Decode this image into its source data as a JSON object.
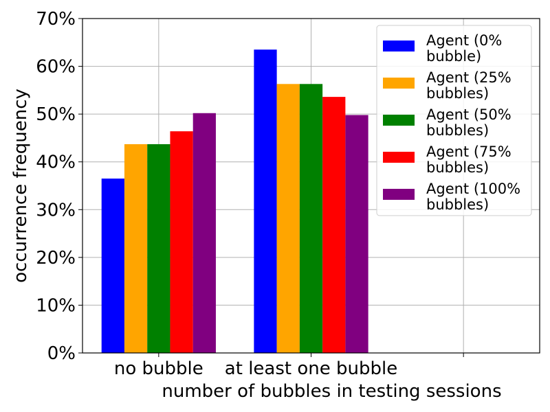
{
  "chart_data": {
    "type": "bar",
    "categories": [
      "no bubble",
      "at least one bubble"
    ],
    "series": [
      {
        "name": "Agent (0% bubble)",
        "label_lines": [
          "Agent (0%",
          "bubble)"
        ],
        "color": "#0000ff",
        "values": [
          36.5,
          63.5
        ]
      },
      {
        "name": "Agent (25% bubbles)",
        "label_lines": [
          "Agent (25%",
          "bubbles)"
        ],
        "color": "#ffa500",
        "values": [
          43.7,
          56.3
        ]
      },
      {
        "name": "Agent (50% bubbles)",
        "label_lines": [
          "Agent (50%",
          "bubbles)"
        ],
        "color": "#008000",
        "values": [
          43.7,
          56.3
        ]
      },
      {
        "name": "Agent (75% bubbles)",
        "label_lines": [
          "Agent (75%",
          "bubbles)"
        ],
        "color": "#ff0000",
        "values": [
          46.4,
          53.6
        ]
      },
      {
        "name": "Agent (100% bubbles)",
        "label_lines": [
          "Agent (100%",
          "bubbles)"
        ],
        "color": "#800080",
        "values": [
          50.2,
          49.8
        ]
      }
    ],
    "xlabel": "number of bubbles in testing sessions",
    "ylabel": "occurrence frequency",
    "ylim": [
      0,
      70
    ],
    "yticks": [
      0,
      10,
      20,
      30,
      40,
      50,
      60,
      70
    ],
    "ytick_labels": [
      "0%",
      "10%",
      "20%",
      "30%",
      "40%",
      "50%",
      "60%",
      "70%"
    ],
    "grid": true,
    "legend_position": "top-right"
  }
}
